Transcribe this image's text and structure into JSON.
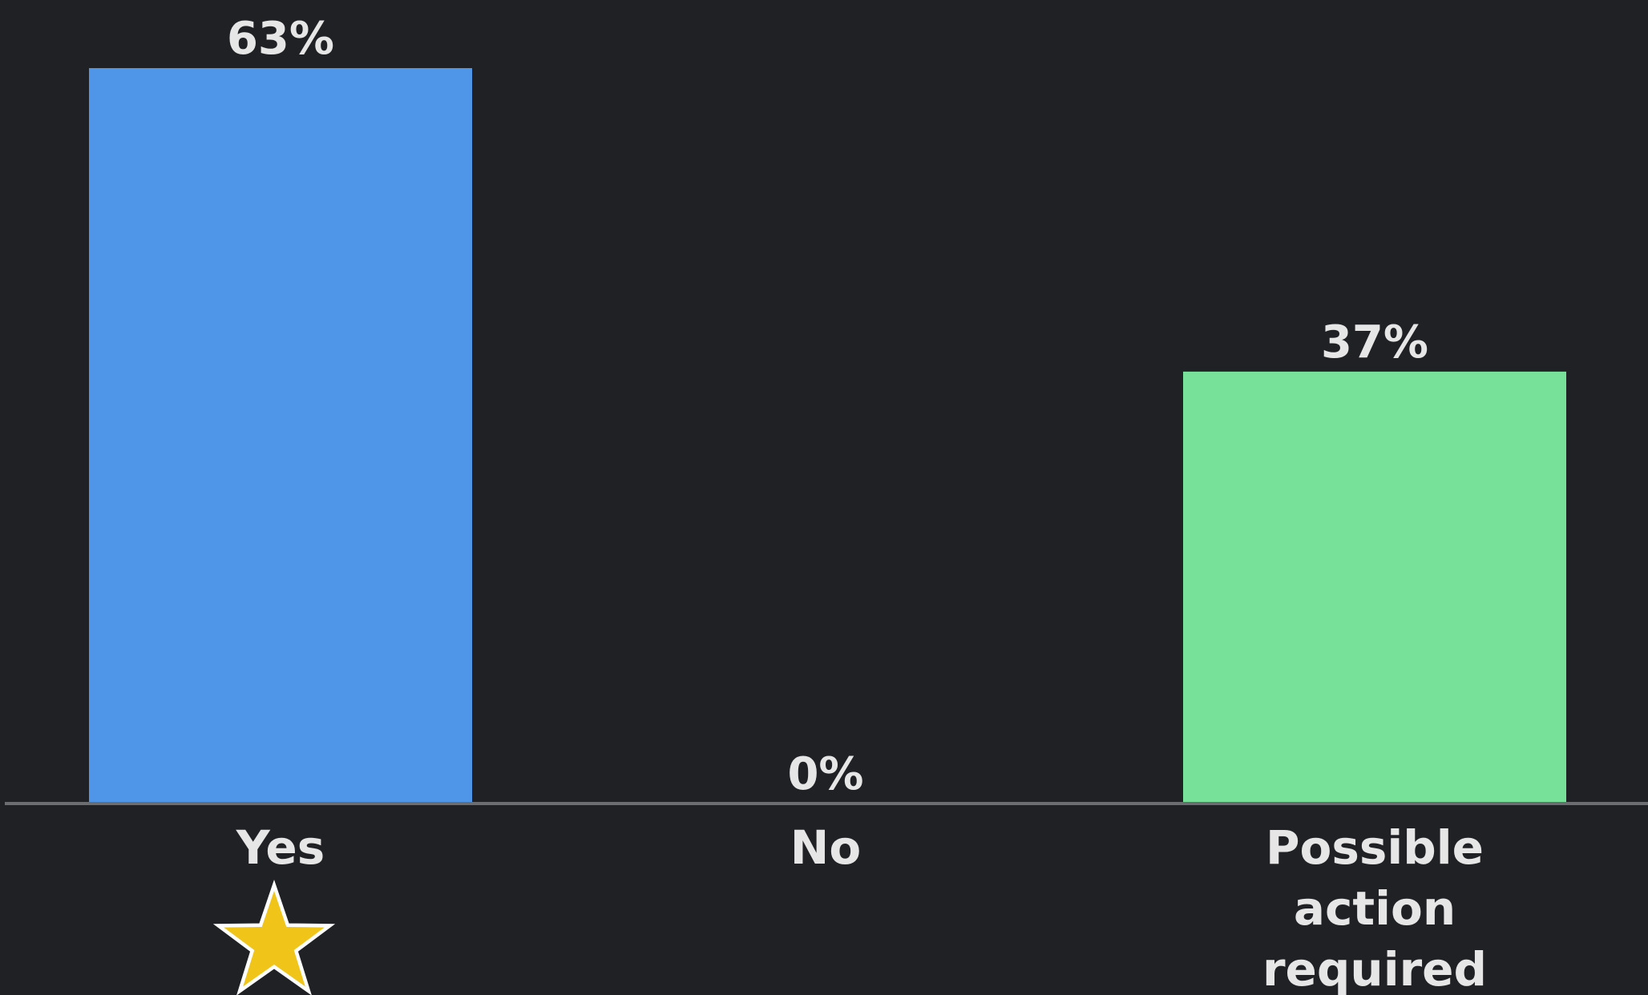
{
  "chart_data": {
    "type": "bar",
    "categories": [
      "Yes",
      "No",
      "Possible action required"
    ],
    "category_lines": [
      [
        "Yes"
      ],
      [
        "No"
      ],
      [
        "Possible",
        "action",
        "required"
      ]
    ],
    "values": [
      63,
      0,
      37
    ],
    "value_labels": [
      "63%",
      "0%",
      "37%"
    ],
    "colors": [
      "#4f96e8",
      "#4f96e8",
      "#77e099"
    ],
    "ylim": [
      0,
      63
    ],
    "grid": false,
    "legend": "none",
    "title": "",
    "xlabel": "",
    "ylabel": "",
    "marker": {
      "category": "Yes",
      "icon": "star-icon",
      "fill": "#f0c419",
      "stroke": "#ffffff"
    }
  },
  "colors": {
    "background": "#202124",
    "axis_line": "#6b6d70",
    "text": "#e6e6e6"
  }
}
